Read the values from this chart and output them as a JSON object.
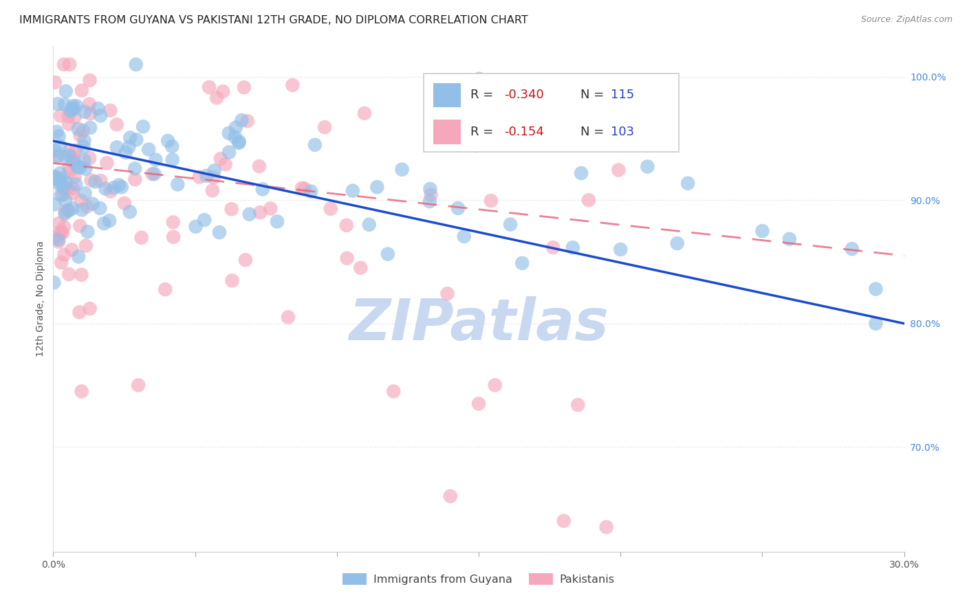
{
  "title": "IMMIGRANTS FROM GUYANA VS PAKISTANI 12TH GRADE, NO DIPLOMA CORRELATION CHART",
  "source": "Source: ZipAtlas.com",
  "ylabel": "12th Grade, No Diploma",
  "ytick_labels": [
    "100.0%",
    "90.0%",
    "80.0%",
    "70.0%"
  ],
  "ytick_values": [
    1.0,
    0.9,
    0.8,
    0.7
  ],
  "xlim": [
    0.0,
    0.3
  ],
  "ylim": [
    0.615,
    1.025
  ],
  "legend_r1": "-0.340",
  "legend_n1": "115",
  "legend_r2": "-0.154",
  "legend_n2": "103",
  "guyana_color": "#92bfe8",
  "pakistani_color": "#f5a8bc",
  "trend_guyana_color": "#1a4ccc",
  "trend_pakistani_color": "#e8607a",
  "watermark": "ZIPatlas",
  "watermark_color": "#c8d8f0",
  "background_color": "#ffffff",
  "title_fontsize": 11.5,
  "axis_label_fontsize": 10,
  "tick_fontsize": 10,
  "legend_fontsize": 13,
  "guyana_R": -0.34,
  "guyana_N": 115,
  "pakistani_R": -0.154,
  "pakistani_N": 103,
  "trend_guyana_y0": 0.948,
  "trend_guyana_y1": 0.8,
  "trend_pakistani_y0": 0.93,
  "trend_pakistani_y1": 0.855
}
